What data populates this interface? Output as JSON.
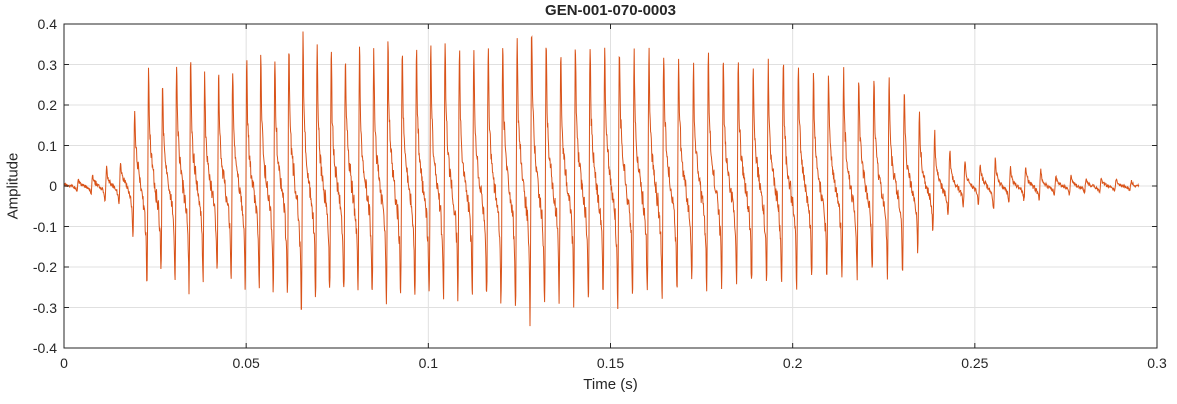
{
  "figure": {
    "background": "#ffffff"
  },
  "chart_data": {
    "type": "line",
    "title": "GEN-001-070-0003",
    "xlabel": "Time (s)",
    "ylabel": "Amplitude",
    "xlim": [
      0,
      0.3
    ],
    "ylim": [
      -0.4,
      0.4
    ],
    "xtick_values": [
      0,
      0.05,
      0.1,
      0.15,
      0.2,
      0.25,
      0.3
    ],
    "xtick_labels": [
      "0",
      "0.05",
      "0.1",
      "0.15",
      "0.2",
      "0.25",
      "0.3"
    ],
    "ytick_values": [
      -0.4,
      -0.3,
      -0.2,
      -0.1,
      0,
      0.1,
      0.2,
      0.3,
      0.4
    ],
    "ytick_labels": [
      "-0.4",
      "-0.3",
      "-0.2",
      "-0.1",
      "0",
      "0.1",
      "0.2",
      "0.3",
      "0.4"
    ],
    "grid": true,
    "legend": null,
    "line_color": "#D95319",
    "grid_color": "#E0E0E0",
    "axis_color": "#262626",
    "series": [
      {
        "name": "GEN-001-070-0003",
        "kind": "speech-like waveform (dense periodic oscillation), values given as positive peak envelope [time_s, amplitude]",
        "duration_s": 0.295,
        "fundamental_hz": 250,
        "harmonic_amplitudes": [
          1,
          0.75,
          0.6,
          0.45,
          0.34,
          0.25,
          0.18,
          0.12
        ],
        "negative_asymmetry": 0.82,
        "noise_level": 0.05,
        "vibrato_hz": 2.3,
        "vibrato_depth": 0.04,
        "envelope_points": [
          [
            0,
            0.006
          ],
          [
            0.004,
            0.015
          ],
          [
            0.008,
            0.03
          ],
          [
            0.011,
            0.05
          ],
          [
            0.014,
            0.04
          ],
          [
            0.017,
            0.08
          ],
          [
            0.019,
            0.16
          ],
          [
            0.021,
            0.31
          ],
          [
            0.024,
            0.29
          ],
          [
            0.028,
            0.25
          ],
          [
            0.031,
            0.3
          ],
          [
            0.035,
            0.31
          ],
          [
            0.04,
            0.26
          ],
          [
            0.045,
            0.28
          ],
          [
            0.05,
            0.3
          ],
          [
            0.055,
            0.32
          ],
          [
            0.06,
            0.33
          ],
          [
            0.065,
            0.38
          ],
          [
            0.07,
            0.33
          ],
          [
            0.075,
            0.32
          ],
          [
            0.08,
            0.34
          ],
          [
            0.085,
            0.33
          ],
          [
            0.09,
            0.35
          ],
          [
            0.095,
            0.33
          ],
          [
            0.1,
            0.34
          ],
          [
            0.105,
            0.35
          ],
          [
            0.11,
            0.33
          ],
          [
            0.115,
            0.34
          ],
          [
            0.12,
            0.35
          ],
          [
            0.125,
            0.37
          ],
          [
            0.128,
            0.4
          ],
          [
            0.132,
            0.35
          ],
          [
            0.137,
            0.33
          ],
          [
            0.142,
            0.36
          ],
          [
            0.147,
            0.33
          ],
          [
            0.152,
            0.35
          ],
          [
            0.157,
            0.32
          ],
          [
            0.162,
            0.34
          ],
          [
            0.167,
            0.33
          ],
          [
            0.172,
            0.3
          ],
          [
            0.177,
            0.32
          ],
          [
            0.182,
            0.3
          ],
          [
            0.187,
            0.31
          ],
          [
            0.19,
            0.29
          ],
          [
            0.195,
            0.3
          ],
          [
            0.2,
            0.31
          ],
          [
            0.205,
            0.28
          ],
          [
            0.21,
            0.27
          ],
          [
            0.215,
            0.28
          ],
          [
            0.22,
            0.26
          ],
          [
            0.225,
            0.27
          ],
          [
            0.23,
            0.25
          ],
          [
            0.235,
            0.18
          ],
          [
            0.24,
            0.12
          ],
          [
            0.245,
            0.07
          ],
          [
            0.25,
            0.05
          ],
          [
            0.255,
            0.07
          ],
          [
            0.258,
            0.05
          ],
          [
            0.262,
            0.04
          ],
          [
            0.266,
            0.05
          ],
          [
            0.27,
            0.03
          ],
          [
            0.275,
            0.025
          ],
          [
            0.28,
            0.02
          ],
          [
            0.285,
            0.02
          ],
          [
            0.29,
            0.015
          ],
          [
            0.295,
            0.01
          ]
        ]
      }
    ]
  }
}
